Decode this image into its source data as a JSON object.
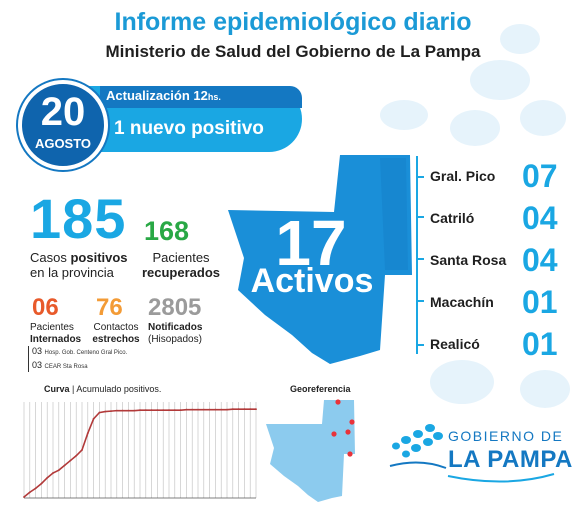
{
  "header": {
    "title": "Informe epidemiológico diario",
    "subtitle": "Ministerio de Salud del Gobierno de La Pampa"
  },
  "date": {
    "day": "20",
    "month": "AGOSTO"
  },
  "banner": {
    "update_label": "Actualización 12",
    "update_unit": "hs.",
    "new_positive": "1 nuevo positivo"
  },
  "stats": {
    "total_cases": {
      "value": "185",
      "label_line1": "Casos ",
      "label_bold": "positivos",
      "label_line2": "en la provincia"
    },
    "recovered": {
      "value": "168",
      "label_line1": "Pacientes",
      "label_line2": "recuperados"
    },
    "hospitalized": {
      "value": "06",
      "label_line1": "Pacientes",
      "label_line2": "Internados"
    },
    "contacts": {
      "value": "76",
      "label_line1": "Contactos",
      "label_line2": "estrechos"
    },
    "notified": {
      "value": "2805",
      "label_line1": "Notificados",
      "label_line2": "(Hisopados)"
    },
    "hospital_breakdown": [
      {
        "count": "03",
        "place": "Hosp. Gob. Centeno Gral Pico."
      },
      {
        "count": "03",
        "place": "CEAR Sta Rosa"
      }
    ]
  },
  "active": {
    "value": "17",
    "label": "Activos"
  },
  "cities": [
    {
      "name": "Gral. Pico",
      "count": "07"
    },
    {
      "name": "Catriló",
      "count": "04"
    },
    {
      "name": "Santa Rosa",
      "count": "04"
    },
    {
      "name": "Macachín",
      "count": "01"
    },
    {
      "name": "Realicó",
      "count": "01"
    }
  ],
  "chart": {
    "title_bold": "Curva",
    "title_rest": " | Acumulado positivos."
  },
  "chart_data": {
    "type": "line",
    "title": "Curva | Acumulado positivos.",
    "x": [
      0,
      1,
      2,
      3,
      4,
      5,
      6,
      7,
      8,
      9,
      10,
      11,
      12,
      13,
      14,
      15,
      16,
      17,
      18,
      19,
      20,
      21,
      22,
      23,
      24,
      25,
      26,
      27,
      28,
      29,
      30,
      31,
      32,
      33,
      34,
      35,
      36,
      37,
      38,
      39,
      40
    ],
    "values": [
      2,
      12,
      20,
      30,
      42,
      52,
      58,
      68,
      78,
      88,
      100,
      135,
      165,
      178,
      180,
      181,
      182,
      182,
      182,
      182,
      183,
      183,
      183,
      183,
      183,
      183,
      183,
      183,
      184,
      184,
      184,
      184,
      184,
      184,
      184,
      184,
      185,
      185,
      185,
      185,
      185
    ],
    "ylim": [
      0,
      200
    ],
    "grid": true
  },
  "map_small": {
    "title": "Georeferencia"
  },
  "logo": {
    "line1": "GOBIERNO DE",
    "line2": "LA PAMPA"
  },
  "colors": {
    "accent": "#1aa7e3",
    "dark_blue": "#1478c2",
    "green": "#29a845",
    "orange": "#e85a2b",
    "light_orange": "#f39b36",
    "grey": "#9b9b9b",
    "curve": "#b23a3a"
  }
}
